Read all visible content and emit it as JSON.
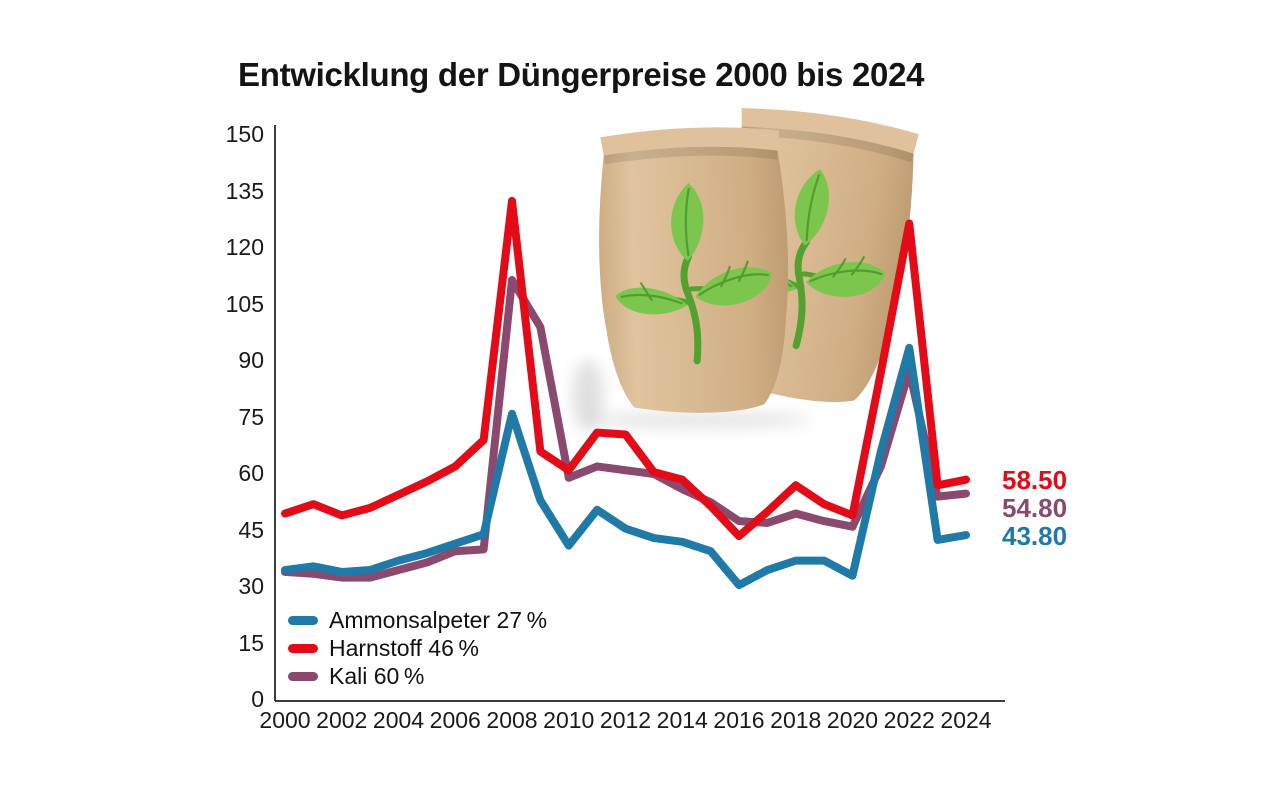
{
  "title": "Entwicklung der Düngerpreise 2000 bis 2024",
  "chart_data": {
    "type": "line",
    "x": [
      2000,
      2001,
      2002,
      2003,
      2004,
      2005,
      2006,
      2007,
      2008,
      2009,
      2010,
      2011,
      2012,
      2013,
      2014,
      2015,
      2016,
      2017,
      2018,
      2019,
      2020,
      2021,
      2022,
      2023,
      2024
    ],
    "x_tick_labels": [
      "2000",
      "2002",
      "2004",
      "2006",
      "2008",
      "2010",
      "2012",
      "2014",
      "2016",
      "2018",
      "2020",
      "2022",
      "2024"
    ],
    "y_ticks": [
      0,
      15,
      30,
      45,
      60,
      75,
      90,
      105,
      120,
      135,
      150
    ],
    "ylim": [
      0,
      150
    ],
    "grid": false,
    "legend_position": "inside-bottom-left",
    "series": [
      {
        "name": "Ammonsalpeter 27 %",
        "color": "#1f7aa8",
        "end_label": "43.80",
        "values": [
          34.5,
          35.5,
          34,
          34.5,
          37,
          39,
          41.5,
          44,
          76,
          53,
          41,
          50.5,
          45.5,
          43,
          42,
          39.5,
          30.5,
          34.5,
          37,
          37,
          33,
          66,
          93.5,
          42.5,
          43.8
        ]
      },
      {
        "name": "Harnstoff 46 %",
        "color": "#e30b17",
        "end_label": "58.50",
        "values": [
          49.5,
          52,
          49,
          51,
          54.5,
          58,
          62,
          69,
          132.5,
          66,
          61,
          71,
          70.5,
          60.5,
          58.5,
          51.5,
          43.5,
          50,
          57,
          52,
          49,
          87,
          126.5,
          57,
          58.5
        ]
      },
      {
        "name": "Kali 60 %",
        "color": "#8a4a6f",
        "end_label": "54.80",
        "values": [
          34,
          33.5,
          32.5,
          32.5,
          34.5,
          36.5,
          39.5,
          40,
          111.5,
          99,
          59,
          62,
          61,
          60,
          56,
          52.5,
          47.5,
          47,
          49.5,
          47.5,
          46,
          62,
          87.5,
          54,
          54.8
        ]
      }
    ]
  },
  "axis": {
    "color": "#3c3c3c",
    "text_color": "#1a1a1a"
  },
  "illustration": {
    "name": "fertilizer-bags",
    "bag_color_light": "#e2c8a4",
    "bag_color": "#d6b58e",
    "bag_color_dark": "#c3a277",
    "leaf_color": "#7cc64d",
    "leaf_vein_color": "#4d9a2c",
    "stem_color": "#53a12f"
  }
}
